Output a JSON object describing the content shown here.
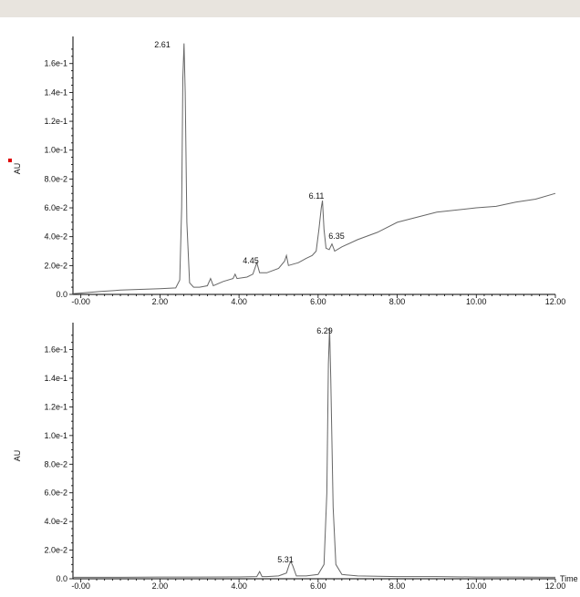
{
  "chart_data": [
    {
      "type": "line",
      "ylabel": "AU",
      "xlabel": "",
      "xlim": [
        -0.2,
        12.0
      ],
      "ylim": [
        0,
        0.175
      ],
      "x_ticks": [
        "-0.00",
        "2.00",
        "4.00",
        "6.00",
        "8.00",
        "10.00",
        "12.00"
      ],
      "y_ticks": [
        "0.0",
        "2.0e-2",
        "4.0e-2",
        "6.0e-2",
        "8.0e-2",
        "1.0e-1",
        "1.2e-1",
        "1.4e-1",
        "1.6e-1"
      ],
      "peak_labels": [
        "2.61",
        "4.45",
        "6.11",
        "6.35"
      ],
      "ylabel_marker_color": "#e00000",
      "line_color": "#666666",
      "x": [
        -0.2,
        0.5,
        1.0,
        1.5,
        2.0,
        2.4,
        2.5,
        2.55,
        2.58,
        2.61,
        2.64,
        2.68,
        2.75,
        2.85,
        3.0,
        3.2,
        3.28,
        3.35,
        3.6,
        3.85,
        3.9,
        3.95,
        4.2,
        4.35,
        4.45,
        4.52,
        4.7,
        5.0,
        5.15,
        5.2,
        5.25,
        5.5,
        5.7,
        5.85,
        5.95,
        6.02,
        6.08,
        6.11,
        6.15,
        6.2,
        6.28,
        6.35,
        6.42,
        6.6,
        7.0,
        7.5,
        8.0,
        9.0,
        10.0,
        10.5,
        11.0,
        11.5,
        12.0
      ],
      "values": [
        0.0005,
        0.002,
        0.003,
        0.0035,
        0.004,
        0.0045,
        0.01,
        0.06,
        0.15,
        0.174,
        0.14,
        0.05,
        0.008,
        0.005,
        0.005,
        0.006,
        0.011,
        0.006,
        0.009,
        0.011,
        0.014,
        0.011,
        0.012,
        0.014,
        0.022,
        0.015,
        0.015,
        0.018,
        0.023,
        0.027,
        0.02,
        0.022,
        0.025,
        0.027,
        0.03,
        0.045,
        0.06,
        0.065,
        0.045,
        0.032,
        0.031,
        0.035,
        0.03,
        0.033,
        0.038,
        0.043,
        0.05,
        0.057,
        0.06,
        0.061,
        0.064,
        0.066,
        0.07
      ]
    },
    {
      "type": "line",
      "ylabel": "AU",
      "xlabel": "Time",
      "xlim": [
        -0.2,
        12.0
      ],
      "ylim": [
        0,
        0.175
      ],
      "x_ticks": [
        "-0.00",
        "2.00",
        "4.00",
        "6.00",
        "8.00",
        "10.00",
        "12.00"
      ],
      "y_ticks": [
        "0.0",
        "2.0e-2",
        "4.0e-2",
        "6.0e-2",
        "8.0e-2",
        "1.0e-1",
        "1.2e-1",
        "1.4e-1",
        "1.6e-1"
      ],
      "peak_labels": [
        "5.31",
        "6.29"
      ],
      "line_color": "#666666",
      "x": [
        -0.2,
        1.0,
        2.0,
        3.0,
        4.0,
        4.45,
        4.52,
        4.58,
        4.7,
        5.0,
        5.2,
        5.27,
        5.31,
        5.36,
        5.45,
        5.7,
        6.0,
        6.15,
        6.22,
        6.26,
        6.29,
        6.32,
        6.38,
        6.45,
        6.6,
        7.0,
        8.0,
        9.0,
        10.0,
        11.0,
        12.0
      ],
      "values": [
        0.001,
        0.001,
        0.0012,
        0.0012,
        0.0013,
        0.0015,
        0.005,
        0.0015,
        0.0015,
        0.002,
        0.004,
        0.01,
        0.012,
        0.009,
        0.002,
        0.002,
        0.003,
        0.01,
        0.06,
        0.15,
        0.175,
        0.14,
        0.05,
        0.01,
        0.003,
        0.002,
        0.0015,
        0.0015,
        0.0012,
        0.0012,
        0.001
      ]
    }
  ]
}
